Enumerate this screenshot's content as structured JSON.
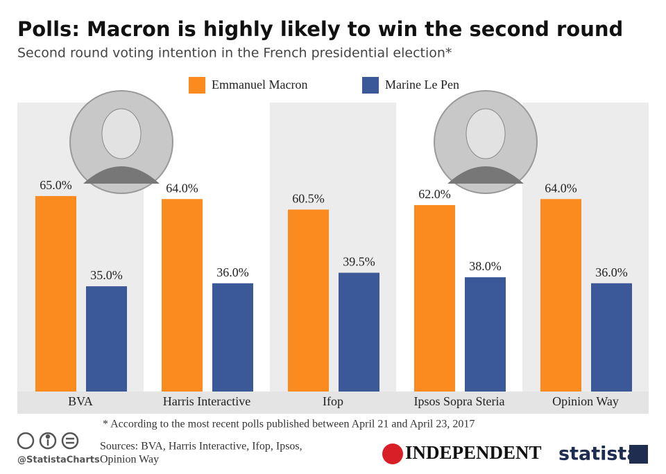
{
  "chart_data": {
    "type": "bar",
    "title": "Polls: Macron is highly likely to win the second round",
    "subtitle": "Second round voting intention in the French presidential election*",
    "categories": [
      "BVA",
      "Harris Interactive",
      "Ifop",
      "Ipsos Sopra Steria",
      "Opinion Way"
    ],
    "series": [
      {
        "name": "Emmanuel Macron",
        "color": "#fb8b1e",
        "values": [
          65.0,
          64.0,
          60.5,
          62.0,
          64.0
        ],
        "value_labels": [
          "65.0%",
          "64.0%",
          "60.5%",
          "62.0%",
          "64.0%"
        ]
      },
      {
        "name": "Marine Le Pen",
        "color": "#3b5998",
        "values": [
          35.0,
          36.0,
          39.5,
          38.0,
          36.0
        ],
        "value_labels": [
          "35.0%",
          "36.0%",
          "39.5%",
          "38.0%",
          "36.0%"
        ]
      }
    ],
    "footnote": "* According to the most recent polls published between April 21 and April 23, 2017"
  },
  "footer": {
    "sources": [
      "Sources: BVA, Harris Interactive, Ifop, Ipsos,",
      "Opinion Way"
    ],
    "handle": "@StatistaCharts",
    "partner": "INDEPENDENT",
    "brand": "statista"
  }
}
